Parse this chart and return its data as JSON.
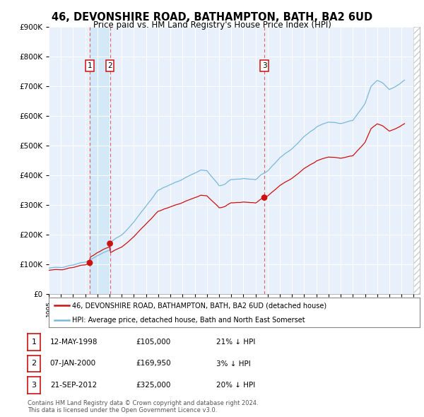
{
  "title": "46, DEVONSHIRE ROAD, BATHAMPTON, BATH, BA2 6UD",
  "subtitle": "Price paid vs. HM Land Registry's House Price Index (HPI)",
  "background_color": "#ffffff",
  "plot_bg_color": "#e8f0fb",
  "grid_color": "#ffffff",
  "ylim": [
    0,
    900000
  ],
  "yticks": [
    0,
    100000,
    200000,
    300000,
    400000,
    500000,
    600000,
    700000,
    800000,
    900000
  ],
  "xlim_start": 1995.0,
  "xlim_end": 2025.5,
  "sale_dates": [
    1998.37,
    2000.03,
    2012.72
  ],
  "sale_prices": [
    105000,
    169950,
    325000
  ],
  "sale_labels": [
    "1",
    "2",
    "3"
  ],
  "sale_info": [
    {
      "label": "1",
      "date": "12-MAY-1998",
      "price": "£105,000",
      "hpi": "21% ↓ HPI"
    },
    {
      "label": "2",
      "date": "07-JAN-2000",
      "price": "£169,950",
      "hpi": "3% ↓ HPI"
    },
    {
      "label": "3",
      "date": "21-SEP-2012",
      "price": "£325,000",
      "hpi": "20% ↓ HPI"
    }
  ],
  "hpi_line_color": "#7ab8d9",
  "sale_line_color": "#cc1111",
  "sale_dot_color": "#cc1111",
  "vline_color": "#e06060",
  "shade_color": "#d0e8f8",
  "legend_house_label": "46, DEVONSHIRE ROAD, BATHAMPTON, BATH, BA2 6UD (detached house)",
  "legend_hpi_label": "HPI: Average price, detached house, Bath and North East Somerset",
  "footer_text": "Contains HM Land Registry data © Crown copyright and database right 2024.\nThis data is licensed under the Open Government Licence v3.0."
}
